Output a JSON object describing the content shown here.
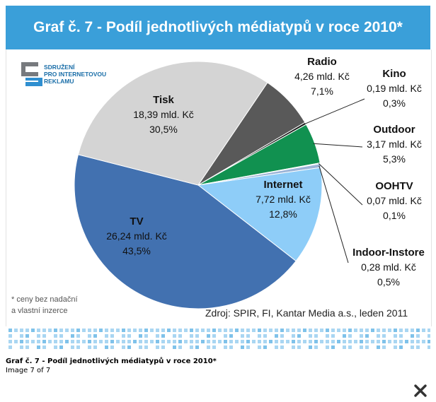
{
  "title": "Graf č. 7 - Podíl jednotlivých médiatypů v roce 2010*",
  "logo": {
    "lines": [
      "SDRUŽENÍ",
      "PRO INTERNETOVOU",
      "REKLAMU"
    ],
    "colors": {
      "dark": "#777a7e",
      "blue": "#2f8fd0"
    }
  },
  "footnote": [
    "* ceny bez nadační",
    "a vlastní inzerce"
  ],
  "source": "Zdroj: SPIR, FI, Kantar Media a.s., leden 2011",
  "caption": {
    "title": "Graf č. 7 - Podíl jednotlivých médiatypů v roce 2010*",
    "counter": "Image 7 of 7"
  },
  "close_icon": "close-icon",
  "chart_data": {
    "type": "pie",
    "title": "Graf č. 7 - Podíl jednotlivých médiatypů v roce 2010*",
    "unit": "mld. Kč",
    "slices": [
      {
        "name": "Radio",
        "value": 4.26,
        "value_label": "4,26 mld.  Kč",
        "share": 7.1,
        "share_label": "7,1%",
        "color": "#595959"
      },
      {
        "name": "Kino",
        "value": 0.19,
        "value_label": "0,19 mld. Kč",
        "share": 0.3,
        "share_label": "0,3%",
        "color": "#1a1a1a"
      },
      {
        "name": "Outdoor",
        "value": 3.17,
        "value_label": "3,17 mld. Kč",
        "share": 5.3,
        "share_label": "5,3%",
        "color": "#119150"
      },
      {
        "name": "OOHTV",
        "value": 0.07,
        "value_label": "0,07 mld. Kč",
        "share": 0.1,
        "share_label": "0,1%",
        "color": "#3f7e9a"
      },
      {
        "name": "Indoor-Instore",
        "value": 0.28,
        "value_label": "0,28 mld. Kč",
        "share": 0.5,
        "share_label": "0,5%",
        "color": "#9bb3d6"
      },
      {
        "name": "Internet",
        "value": 7.72,
        "value_label": "7,72 mld. Kč",
        "share": 12.8,
        "share_label": "12,8%",
        "color": "#8ecdf8"
      },
      {
        "name": "TV",
        "value": 26.24,
        "value_label": "26,24 mld. Kč",
        "share": 43.5,
        "share_label": "43,5%",
        "color": "#4271b0"
      },
      {
        "name": "Tisk",
        "value": 18.39,
        "value_label": "18,39 mld. Kč",
        "share": 30.5,
        "share_label": "30,5%",
        "color": "#d4d4d4"
      }
    ]
  }
}
